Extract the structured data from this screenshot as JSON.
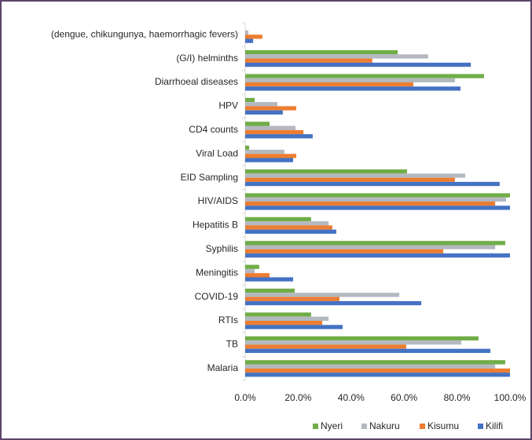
{
  "chart_data": {
    "type": "bar",
    "orientation": "horizontal",
    "categories": [
      "(dengue, chikungunya, haemorrhagic fevers)",
      "(G/I) helminths",
      "Diarrhoeal diseases",
      "HPV",
      "CD4 counts",
      "Viral Load",
      "EID Sampling",
      "HIV/AIDS",
      "Hepatitis B",
      "Syphilis",
      "Meningitis",
      "COVID-19",
      "RTIs",
      "TB",
      "Malaria"
    ],
    "series": [
      {
        "name": "Nyeri",
        "color": "#70ad47",
        "values": [
          0,
          57.6,
          90.2,
          3.6,
          9.2,
          1.5,
          61.1,
          100,
          24.9,
          98.2,
          5.3,
          18.7,
          24.9,
          88.1,
          98.2
        ]
      },
      {
        "name": "Nakuru",
        "color": "#b4b8c0",
        "values": [
          1.2,
          69.1,
          79.2,
          12.2,
          19,
          14.8,
          83.1,
          98.5,
          31.5,
          94.4,
          3.6,
          58.2,
          31.5,
          81.6,
          94.4
        ]
      },
      {
        "name": "Kisumu",
        "color": "#ed7d31",
        "values": [
          6.5,
          48,
          63.5,
          19.3,
          22,
          19.3,
          79.2,
          94.4,
          32.9,
          74.8,
          9.2,
          35.6,
          29.1,
          60.8,
          100
        ]
      },
      {
        "name": "Kilifi",
        "color": "#4472c4",
        "values": [
          3,
          85.2,
          81.3,
          14.2,
          25.5,
          18.1,
          96.1,
          100,
          34.4,
          100,
          18.1,
          66.5,
          36.8,
          92.6,
          100
        ]
      }
    ],
    "xlim": [
      0,
      100
    ],
    "xticks": [
      {
        "value": 0,
        "label": "0.0%"
      },
      {
        "value": 20,
        "label": "20.0%"
      },
      {
        "value": 40,
        "label": "40.0%"
      },
      {
        "value": 60,
        "label": "60.0%"
      },
      {
        "value": 80,
        "label": "80.0%"
      },
      {
        "value": 100,
        "label": "100.0%"
      }
    ],
    "legend": "bottom-right",
    "grid": false
  }
}
